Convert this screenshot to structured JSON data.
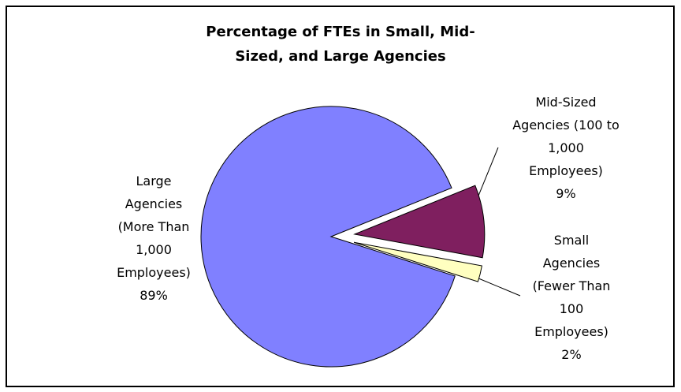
{
  "chart_data": {
    "type": "pie",
    "title": "Percentage of FTEs in Small, Mid-Sized, and Large Agencies",
    "categories": [
      "Large Agencies (More Than 1,000 Employees)",
      "Mid-Sized Agencies (100 to 1,000 Employees)",
      "Small Agencies (Fewer Than 100 Employees)"
    ],
    "values": [
      89,
      9,
      2
    ],
    "value_labels": [
      "89%",
      "9%",
      "2%"
    ],
    "colors": [
      "#8080ff",
      "#7f1f5f",
      "#ffffc0"
    ]
  }
}
